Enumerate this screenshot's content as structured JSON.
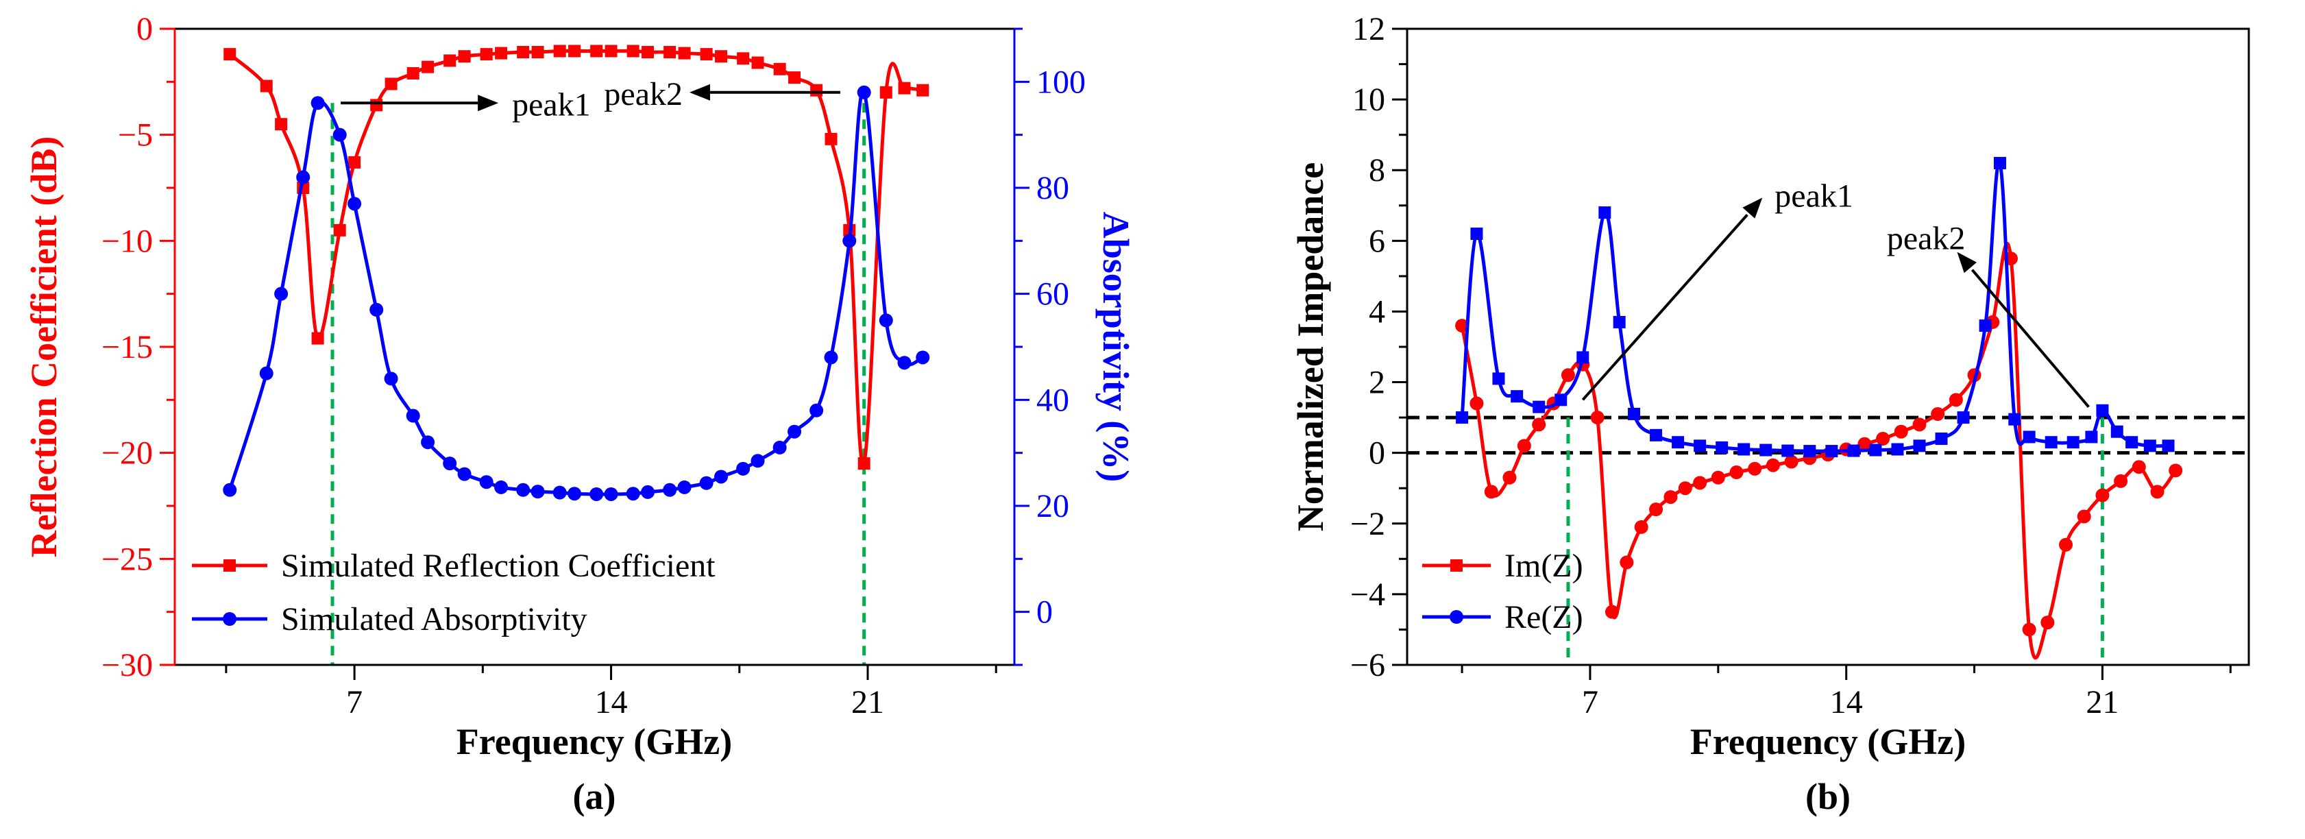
{
  "chart_data": [
    {
      "type": "line",
      "panel_label": "(a)",
      "xlabel": "Frequency (GHz)",
      "ylabel_left": "Reflection Coefficient (dB)",
      "ylabel_right": "Absorptivity (%)",
      "xlim": [
        2.1,
        25.0
      ],
      "xticks": [
        7,
        14,
        21
      ],
      "ylim_left": [
        -30,
        0
      ],
      "yticks_left": [
        0,
        -5,
        -10,
        -15,
        -20,
        -25,
        -30
      ],
      "ylim_right": [
        -10,
        110
      ],
      "yticks_right": [
        0,
        20,
        40,
        60,
        80,
        100
      ],
      "colors": {
        "reflection": "#ff0000",
        "absorptivity": "#0000ff",
        "marker_line": "#00b050"
      },
      "series": [
        {
          "name": "Simulated Reflection Coefficient",
          "axis": "left",
          "marker": "square",
          "x": [
            3.6,
            4.6,
            5.0,
            5.6,
            6.0,
            6.6,
            7.0,
            7.6,
            8.0,
            8.6,
            9.0,
            9.6,
            10.0,
            10.6,
            11.0,
            11.6,
            12.0,
            12.6,
            13.0,
            13.6,
            14.0,
            14.6,
            15.0,
            15.6,
            16.0,
            16.6,
            17.0,
            17.6,
            18.0,
            18.6,
            19.0,
            19.6,
            20.0,
            20.5,
            20.9,
            21.5,
            22.0,
            22.5
          ],
          "y": [
            -1.2,
            -2.7,
            -4.5,
            -7.5,
            -14.6,
            -9.5,
            -6.3,
            -3.6,
            -2.6,
            -2.1,
            -1.8,
            -1.5,
            -1.3,
            -1.2,
            -1.15,
            -1.1,
            -1.1,
            -1.05,
            -1.05,
            -1.05,
            -1.05,
            -1.05,
            -1.1,
            -1.1,
            -1.15,
            -1.2,
            -1.3,
            -1.4,
            -1.6,
            -1.9,
            -2.3,
            -2.9,
            -5.2,
            -9.5,
            -20.5,
            -3.0,
            -2.8,
            -2.9
          ]
        },
        {
          "name": "Simulated Absorptivity",
          "axis": "right",
          "marker": "circle",
          "x": [
            3.6,
            4.6,
            5.0,
            5.6,
            6.0,
            6.6,
            7.0,
            7.6,
            8.0,
            8.6,
            9.0,
            9.6,
            10.0,
            10.6,
            11.0,
            11.6,
            12.0,
            12.6,
            13.0,
            13.6,
            14.0,
            14.6,
            15.0,
            15.6,
            16.0,
            16.6,
            17.0,
            17.6,
            18.0,
            18.6,
            19.0,
            19.6,
            20.0,
            20.5,
            20.9,
            21.5,
            22.0,
            22.5
          ],
          "y": [
            23,
            45,
            60,
            82,
            96,
            90,
            77,
            57,
            44,
            37,
            32,
            28,
            26,
            24.5,
            23.5,
            23,
            22.7,
            22.5,
            22.3,
            22.2,
            22.2,
            22.3,
            22.6,
            23,
            23.5,
            24.3,
            25.5,
            27,
            28.5,
            31,
            34,
            38,
            48,
            70,
            98,
            55,
            47,
            48
          ]
        }
      ],
      "annotations": [
        {
          "text": "peak1",
          "x": 7.0,
          "y_right": 96,
          "arrow": "right"
        },
        {
          "text": "peak2",
          "x": 21.0,
          "y_right": 98,
          "arrow": "left"
        }
      ],
      "vlines": [
        6.4,
        20.9
      ],
      "legend": "lower-left"
    },
    {
      "type": "line",
      "panel_label": "(b)",
      "xlabel": "Frequency (GHz)",
      "ylabel": "Normalized Impedance",
      "xlim": [
        2.0,
        25.0
      ],
      "xticks": [
        7,
        14,
        21
      ],
      "ylim": [
        -6,
        12
      ],
      "yticks": [
        -6,
        -4,
        -2,
        0,
        2,
        4,
        6,
        8,
        10,
        12
      ],
      "hlines": [
        1,
        0
      ],
      "vlines": [
        6.4,
        21.0
      ],
      "colors": {
        "im": "#ff0000",
        "re": "#0000ff",
        "marker_line": "#00b050",
        "hline": "#000000"
      },
      "series": [
        {
          "name": "Im(Z)",
          "marker": "circle",
          "x": [
            3.5,
            3.9,
            4.3,
            4.8,
            5.2,
            5.6,
            6.0,
            6.4,
            6.8,
            7.2,
            7.6,
            8.0,
            8.4,
            8.8,
            9.2,
            9.6,
            10.0,
            10.5,
            11.0,
            11.5,
            12.0,
            12.5,
            13.0,
            13.5,
            14.0,
            14.5,
            15.0,
            15.5,
            16.0,
            16.5,
            17.0,
            17.5,
            18.0,
            18.5,
            19.0,
            19.5,
            20.0,
            20.5,
            21.0,
            21.5,
            22.0,
            22.5,
            23.0
          ],
          "y": [
            3.6,
            1.4,
            -1.1,
            -0.7,
            0.2,
            0.8,
            1.4,
            2.2,
            2.5,
            1.0,
            -4.5,
            -3.1,
            -2.1,
            -1.6,
            -1.25,
            -1.0,
            -0.85,
            -0.7,
            -0.55,
            -0.45,
            -0.35,
            -0.25,
            -0.15,
            -0.05,
            0.1,
            0.25,
            0.4,
            0.6,
            0.8,
            1.1,
            1.5,
            2.2,
            3.7,
            5.5,
            -5.0,
            -4.8,
            -2.6,
            -1.8,
            -1.2,
            -0.8,
            -0.4,
            -1.1,
            -0.5
          ]
        },
        {
          "name": "Re(Z)",
          "marker": "square",
          "x": [
            3.5,
            3.9,
            4.5,
            5.0,
            5.6,
            6.2,
            6.8,
            7.4,
            7.8,
            8.2,
            8.8,
            9.4,
            10.0,
            10.6,
            11.2,
            11.8,
            12.4,
            13.0,
            13.6,
            14.2,
            14.8,
            15.4,
            16.0,
            16.6,
            17.2,
            17.8,
            18.2,
            18.6,
            19.0,
            19.6,
            20.2,
            20.7,
            21.0,
            21.4,
            21.8,
            22.3,
            22.8
          ],
          "y": [
            1.0,
            6.2,
            2.1,
            1.6,
            1.3,
            1.5,
            2.7,
            6.8,
            3.7,
            1.1,
            0.5,
            0.3,
            0.2,
            0.15,
            0.1,
            0.08,
            0.06,
            0.05,
            0.05,
            0.06,
            0.08,
            0.1,
            0.2,
            0.4,
            1.0,
            3.6,
            8.2,
            0.95,
            0.45,
            0.3,
            0.3,
            0.45,
            1.2,
            0.6,
            0.3,
            0.2,
            0.2
          ]
        }
      ],
      "annotations": [
        {
          "text": "peak1",
          "x": 6.8,
          "y": 1.5
        },
        {
          "text": "peak2",
          "x": 21.0,
          "y": 1.3
        }
      ],
      "legend": "lower-left"
    }
  ]
}
